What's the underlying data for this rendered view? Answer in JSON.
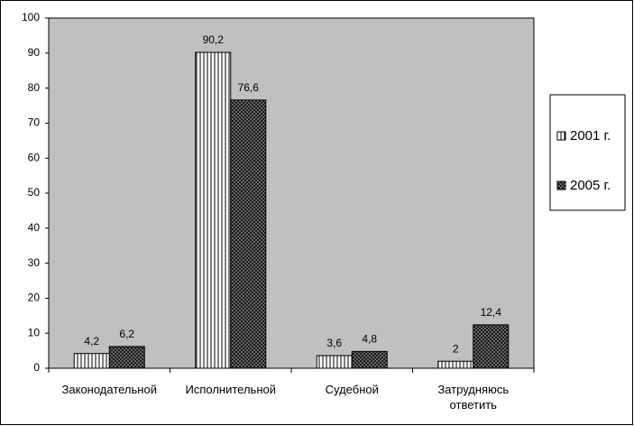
{
  "chart_data": {
    "type": "bar",
    "categories": [
      "Законодательной",
      "Исполнительной",
      "Судебной",
      "Затрудняюсь ответить"
    ],
    "series": [
      {
        "name": "2001 г.",
        "color": "#ffffff",
        "values": [
          4.2,
          90.2,
          3.6,
          2
        ],
        "value_labels": [
          "4,2",
          "90,2",
          "3,6",
          "2"
        ]
      },
      {
        "name": "2005 г.",
        "color": "#808080",
        "values": [
          6.2,
          76.6,
          4.8,
          12.4
        ],
        "value_labels": [
          "6,2",
          "76,6",
          "4,8",
          "12,4"
        ]
      }
    ],
    "ylim": [
      0,
      100
    ],
    "yticks": [
      0,
      10,
      20,
      30,
      40,
      50,
      60,
      70,
      80,
      90,
      100
    ],
    "plot_background": "#c0c0c0",
    "legend": "right"
  }
}
